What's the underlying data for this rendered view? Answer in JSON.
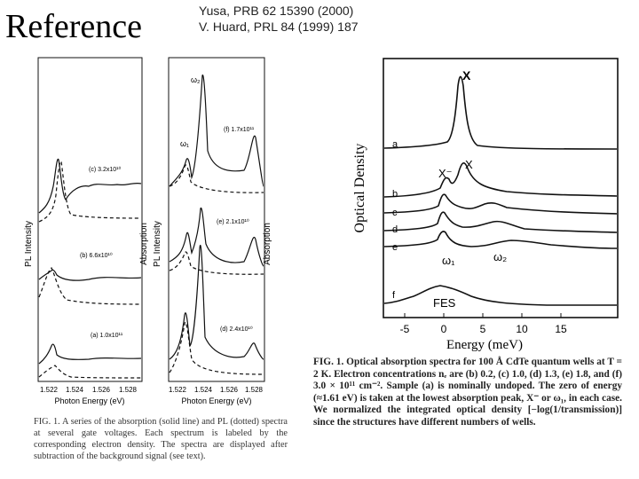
{
  "slide": {
    "title": "Reference",
    "references": [
      "Yusa, PRB 62 15390 (2000)",
      "V. Huard, PRL 84 (1999) 187"
    ]
  },
  "left_figure": {
    "ylabel_left": "PL Intensity",
    "ylabel_mid1": "Absorption",
    "ylabel_mid2": "PL Intensity",
    "ylabel_right": "Absorption",
    "panel1": {
      "xticks": [
        "1.522",
        "1.524",
        "1.526",
        "1.528"
      ],
      "traces": [
        "(c) 3.2x10¹⁰",
        "(b) 6.6x10¹⁰",
        "(a) 1.0x10¹¹"
      ],
      "xlabel": "Photon Energy (eV)"
    },
    "panel2": {
      "xticks": [
        "1.522",
        "1.524",
        "1.526",
        "1.528"
      ],
      "peaks": [
        "ω₂",
        "ω₁"
      ],
      "traces": [
        "(f) 1.7x10¹¹",
        "(e) 2.1x10¹⁰",
        "(d) 2.4x10¹⁰"
      ],
      "xlabel": "Photon Energy (eV)"
    },
    "caption": "FIG. 1. A series of the absorption (solid line) and PL (dotted) spectra at several gate voltages. Each spectrum is labeled by the corresponding electron density. The spectra are displayed after subtraction of the background signal (see text)."
  },
  "right_figure": {
    "ylabel": "Optical Density",
    "xlabel": "Energy  (meV)",
    "xticks": [
      "-5",
      "0",
      "5",
      "10",
      "15"
    ],
    "trace_labels": [
      "a",
      "b",
      "c",
      "d",
      "e",
      "f"
    ],
    "peak_labels": {
      "x": "X",
      "x_minus": "X⁻",
      "x2": "X",
      "w1": "ω₁",
      "w2": "ω₂",
      "fes": "FES"
    },
    "caption": "FIG. 1. Optical absorption spectra for 100 Å CdTe quantum wells at T = 2 K. Electron concentrations nₑ are (b) 0.2, (c) 1.0, (d) 1.3, (e) 1.8, and (f) 3.0 × 10¹¹ cm⁻². Sample (a) is nominally undoped. The zero of energy (≈1.61 eV) is taken at the lowest absorption peak, X⁻ or ω₁, in each case. We normalized the integrated optical density [−log(1/transmission)] since the structures have different numbers of wells."
  },
  "chart_data": [
    {
      "type": "line",
      "title": "",
      "xlabel": "Photon Energy (eV)",
      "ylabel": "PL Intensity / Absorption",
      "xlim": [
        1.521,
        1.5285
      ],
      "series": [
        {
          "name": "(c) 3.2x10¹⁰",
          "x": [
            1.521,
            1.5225,
            1.5228,
            1.523,
            1.5245,
            1.526,
            1.528
          ],
          "values": [
            0.6,
            0.7,
            1.0,
            0.8,
            0.9,
            0.85,
            0.9
          ]
        },
        {
          "name": "(b) 6.6x10¹⁰",
          "x": [
            1.521,
            1.5223,
            1.5226,
            1.524,
            1.526,
            1.528
          ],
          "values": [
            0.4,
            0.5,
            0.65,
            0.45,
            0.42,
            0.42
          ]
        },
        {
          "name": "(a) 1.0x10¹¹",
          "x": [
            1.521,
            1.5222,
            1.5226,
            1.524,
            1.526,
            1.528
          ],
          "values": [
            0.1,
            0.15,
            0.3,
            0.12,
            0.1,
            0.1
          ]
        }
      ]
    },
    {
      "type": "line",
      "title": "",
      "xlabel": "Photon Energy (eV)",
      "ylabel": "PL Intensity / Absorption",
      "xlim": [
        1.521,
        1.5285
      ],
      "series": [
        {
          "name": "(f) 1.7x10¹¹",
          "x": [
            1.521,
            1.5225,
            1.524,
            1.5245,
            1.526,
            1.5275
          ],
          "values": [
            0.7,
            0.75,
            1.0,
            0.75,
            0.72,
            0.9
          ]
        },
        {
          "name": "(e) 2.1x10¹⁰",
          "x": [
            1.521,
            1.5225,
            1.524,
            1.526,
            1.5275
          ],
          "values": [
            0.4,
            0.5,
            0.55,
            0.42,
            0.5
          ]
        },
        {
          "name": "(d) 2.4x10¹⁰",
          "x": [
            1.521,
            1.5225,
            1.524,
            1.526,
            1.5275
          ],
          "values": [
            0.05,
            0.3,
            0.45,
            0.08,
            0.05
          ]
        }
      ]
    },
    {
      "type": "line",
      "title": "",
      "xlabel": "Energy  (meV)",
      "ylabel": "Optical Density",
      "xlim": [
        -7,
        18
      ],
      "series": [
        {
          "name": "a",
          "x": [
            -7,
            -2,
            0,
            1.5,
            2.5,
            3.5,
            6,
            10,
            18
          ],
          "values": [
            0.02,
            0.04,
            0.1,
            0.35,
            1.0,
            0.35,
            0.05,
            0.02,
            0.02
          ]
        },
        {
          "name": "b",
          "x": [
            -7,
            -2,
            0,
            1,
            2.5,
            4,
            7,
            12,
            18
          ],
          "values": [
            0.02,
            0.1,
            0.55,
            0.4,
            0.85,
            0.45,
            0.15,
            0.05,
            0.03
          ]
        },
        {
          "name": "c",
          "x": [
            -7,
            -2,
            0,
            1.5,
            3,
            5,
            8,
            12,
            18
          ],
          "values": [
            0.02,
            0.1,
            0.7,
            0.35,
            0.4,
            0.45,
            0.3,
            0.1,
            0.03
          ]
        },
        {
          "name": "d",
          "x": [
            -7,
            -2,
            0,
            2,
            4,
            5.5,
            8,
            12,
            18
          ],
          "values": [
            0.02,
            0.1,
            0.75,
            0.3,
            0.35,
            0.5,
            0.3,
            0.1,
            0.04
          ]
        },
        {
          "name": "e",
          "x": [
            -7,
            -2,
            0,
            2,
            4,
            6.5,
            10,
            14,
            18
          ],
          "values": [
            0.03,
            0.1,
            0.7,
            0.3,
            0.3,
            0.4,
            0.3,
            0.1,
            0.05
          ]
        },
        {
          "name": "f",
          "x": [
            -7,
            -4,
            -2,
            0,
            2,
            4,
            6,
            10,
            18
          ],
          "values": [
            0.02,
            0.1,
            0.3,
            0.45,
            0.35,
            0.2,
            0.1,
            0.04,
            0.02
          ]
        }
      ]
    }
  ]
}
